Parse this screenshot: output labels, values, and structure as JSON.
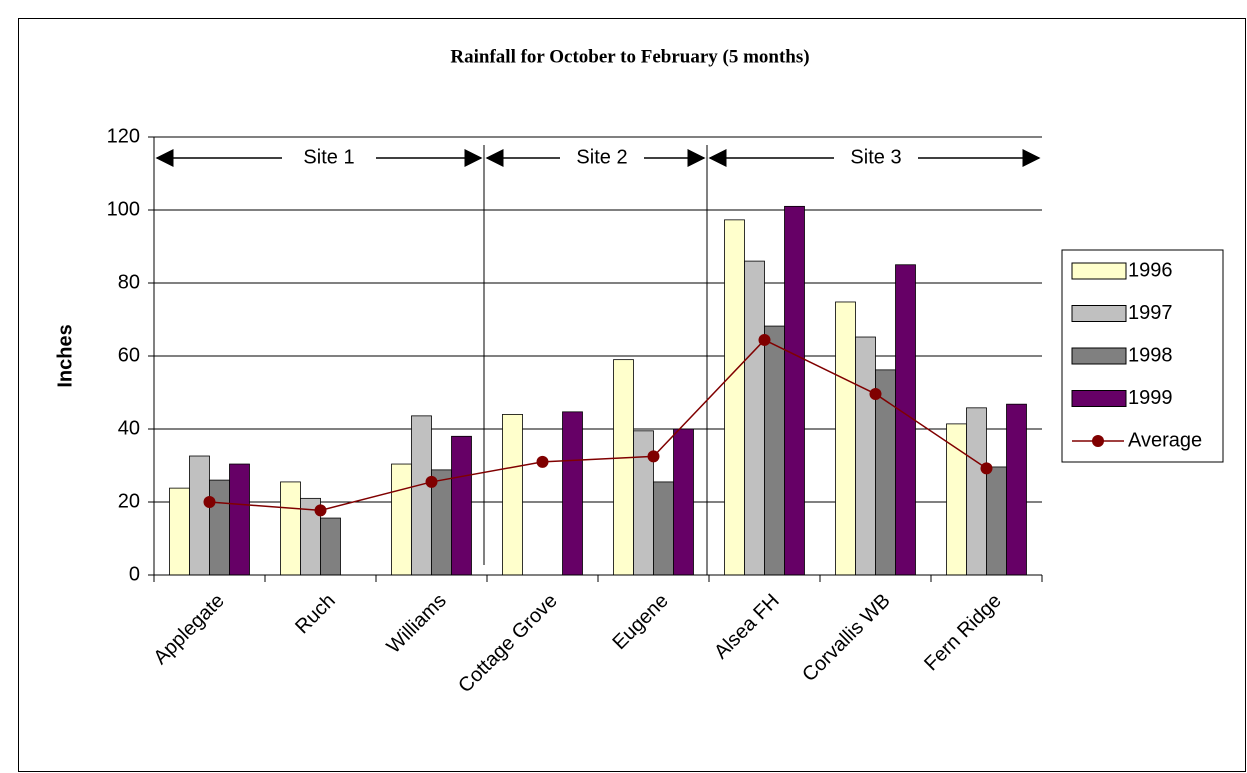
{
  "chart_data": {
    "type": "bar",
    "title": "Rainfall for October to February (5 months)",
    "y_label": "Inches",
    "categories": [
      "Applegate",
      "Ruch",
      "Williams",
      "Cottage Grove",
      "Eugene",
      "Alsea FH",
      "Corvallis WB",
      "Fern Ridge"
    ],
    "series": [
      {
        "name": "1996",
        "color": "#ffffcc",
        "values": [
          23.8,
          25.5,
          30.4,
          44,
          59,
          97.3,
          74.8,
          41.4
        ]
      },
      {
        "name": "1997",
        "color": "#c0c0c0",
        "values": [
          32.6,
          21,
          43.6,
          null,
          39.5,
          86,
          65.2,
          45.8
        ]
      },
      {
        "name": "1998",
        "color": "#808080",
        "values": [
          26,
          15.6,
          28.8,
          null,
          25.5,
          68.2,
          56.2,
          29.6
        ]
      },
      {
        "name": "1999",
        "color": "#660066",
        "values": [
          30.4,
          null,
          38,
          44.7,
          40,
          101,
          85,
          46.8
        ]
      },
      {
        "name": "Average",
        "color": "#800000",
        "type": "line",
        "values": [
          20,
          17.7,
          25.5,
          31,
          32.5,
          64.4,
          49.6,
          29.2
        ]
      }
    ],
    "annotations": [
      "Site 1",
      "Site 2",
      "Site 3"
    ],
    "ylim": [
      0,
      120
    ],
    "yticks": [
      0,
      20,
      40,
      60,
      80,
      100,
      120
    ],
    "grid": true,
    "legend": "right"
  }
}
